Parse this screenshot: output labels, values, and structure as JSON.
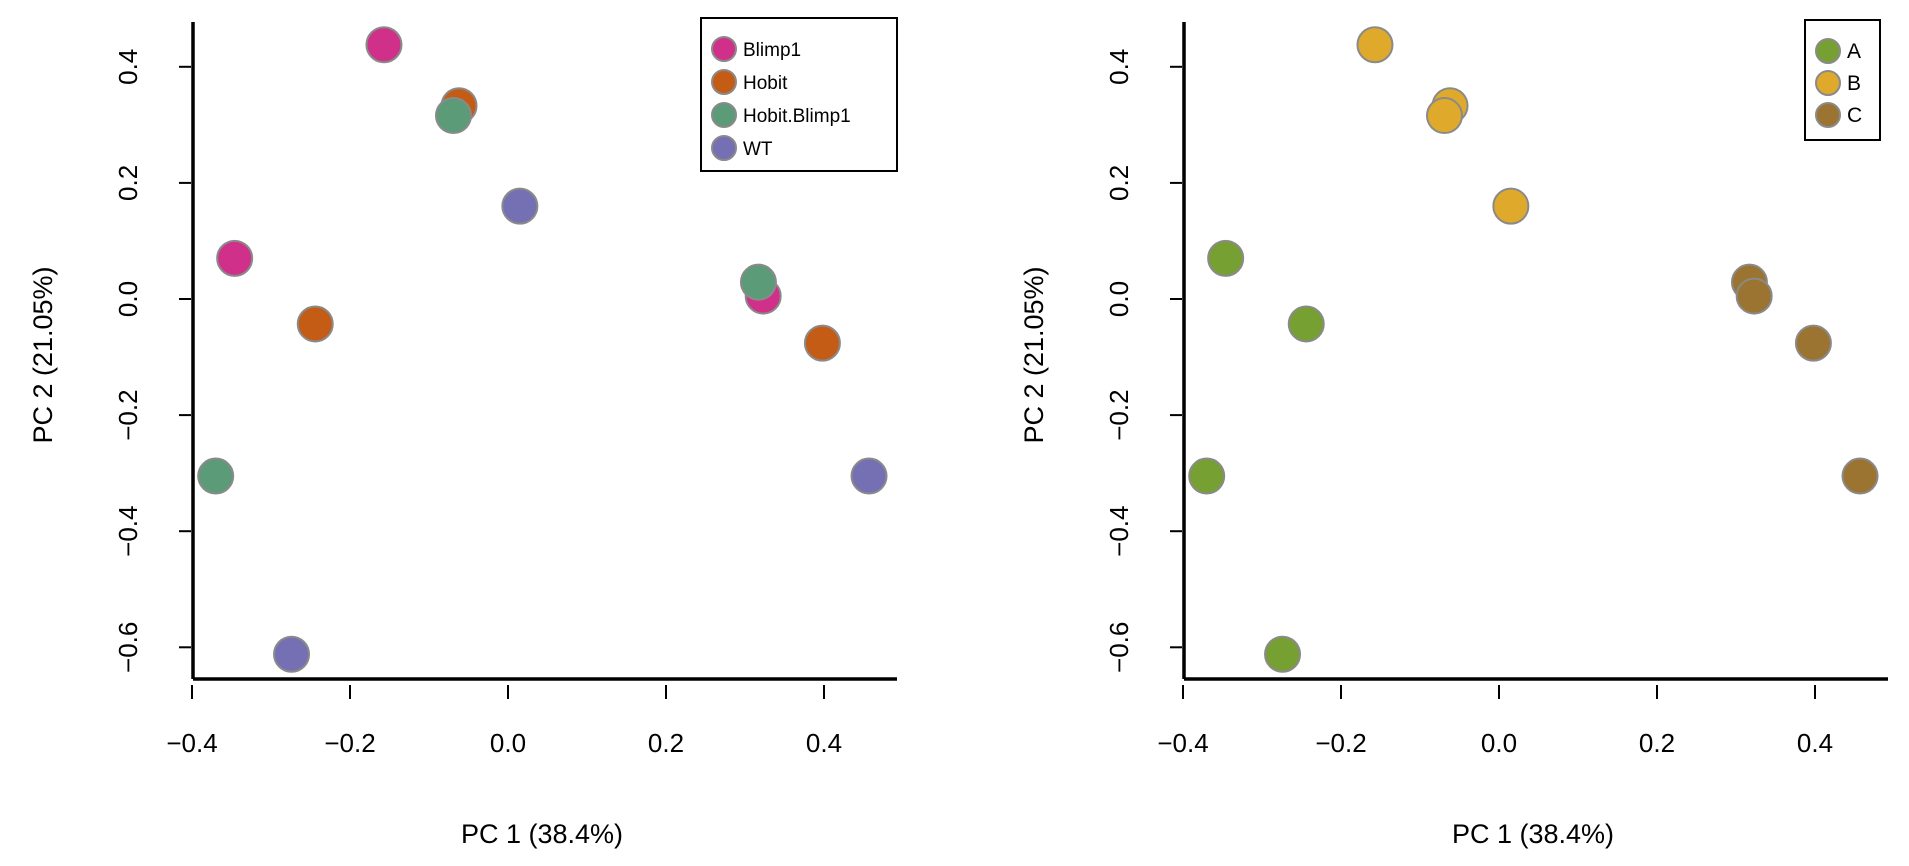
{
  "chart_data": [
    {
      "type": "scatter",
      "xlabel": "PC 1 (38.4%)",
      "ylabel": "PC 2 (21.05%)",
      "xlim": [
        -0.4,
        0.5
      ],
      "ylim": [
        -0.65,
        0.46
      ],
      "xticks": [
        "-0.4",
        "-0.2",
        "0.0",
        "0.2",
        "0.4"
      ],
      "yticks": [
        "-0.6",
        "-0.4",
        "-0.2",
        "0.0",
        "0.2",
        "0.4"
      ],
      "grid": false,
      "legend_position": "top-right",
      "series": [
        {
          "name": "Blimp1",
          "color": "#d0308a",
          "points": [
            [
              -0.157,
              0.438
            ],
            [
              -0.346,
              0.07
            ],
            [
              0.323,
              0.005
            ]
          ]
        },
        {
          "name": "Hobit",
          "color": "#c45c16",
          "points": [
            [
              -0.062,
              0.333
            ],
            [
              -0.244,
              -0.043
            ],
            [
              0.398,
              -0.076
            ]
          ]
        },
        {
          "name": "Hobit.Blimp1",
          "color": "#5b9b78",
          "points": [
            [
              -0.069,
              0.316
            ],
            [
              -0.37,
              -0.305
            ],
            [
              0.317,
              0.029
            ]
          ]
        },
        {
          "name": "WT",
          "color": "#7570b3",
          "points": [
            [
              0.015,
              0.16
            ],
            [
              -0.274,
              -0.612
            ],
            [
              0.457,
              -0.305
            ]
          ]
        }
      ]
    },
    {
      "type": "scatter",
      "xlabel": "PC 1 (38.4%)",
      "ylabel": "PC 2 (21.05%)",
      "xlim": [
        -0.4,
        0.5
      ],
      "ylim": [
        -0.65,
        0.46
      ],
      "xticks": [
        "-0.4",
        "-0.2",
        "0.0",
        "0.2",
        "0.4"
      ],
      "yticks": [
        "-0.6",
        "-0.4",
        "-0.2",
        "0.0",
        "0.2",
        "0.4"
      ],
      "grid": false,
      "legend_position": "top-right",
      "series": [
        {
          "name": "A",
          "color": "#77a032",
          "points": [
            [
              -0.346,
              0.07
            ],
            [
              -0.244,
              -0.043
            ],
            [
              -0.37,
              -0.305
            ],
            [
              -0.274,
              -0.612
            ]
          ]
        },
        {
          "name": "B",
          "color": "#dfaa2c",
          "points": [
            [
              -0.157,
              0.438
            ],
            [
              -0.062,
              0.333
            ],
            [
              -0.069,
              0.316
            ],
            [
              0.015,
              0.16
            ]
          ]
        },
        {
          "name": "C",
          "color": "#9a7430",
          "points": [
            [
              0.317,
              0.029
            ],
            [
              0.323,
              0.005
            ],
            [
              0.398,
              -0.076
            ],
            [
              0.457,
              -0.305
            ]
          ]
        }
      ]
    }
  ]
}
